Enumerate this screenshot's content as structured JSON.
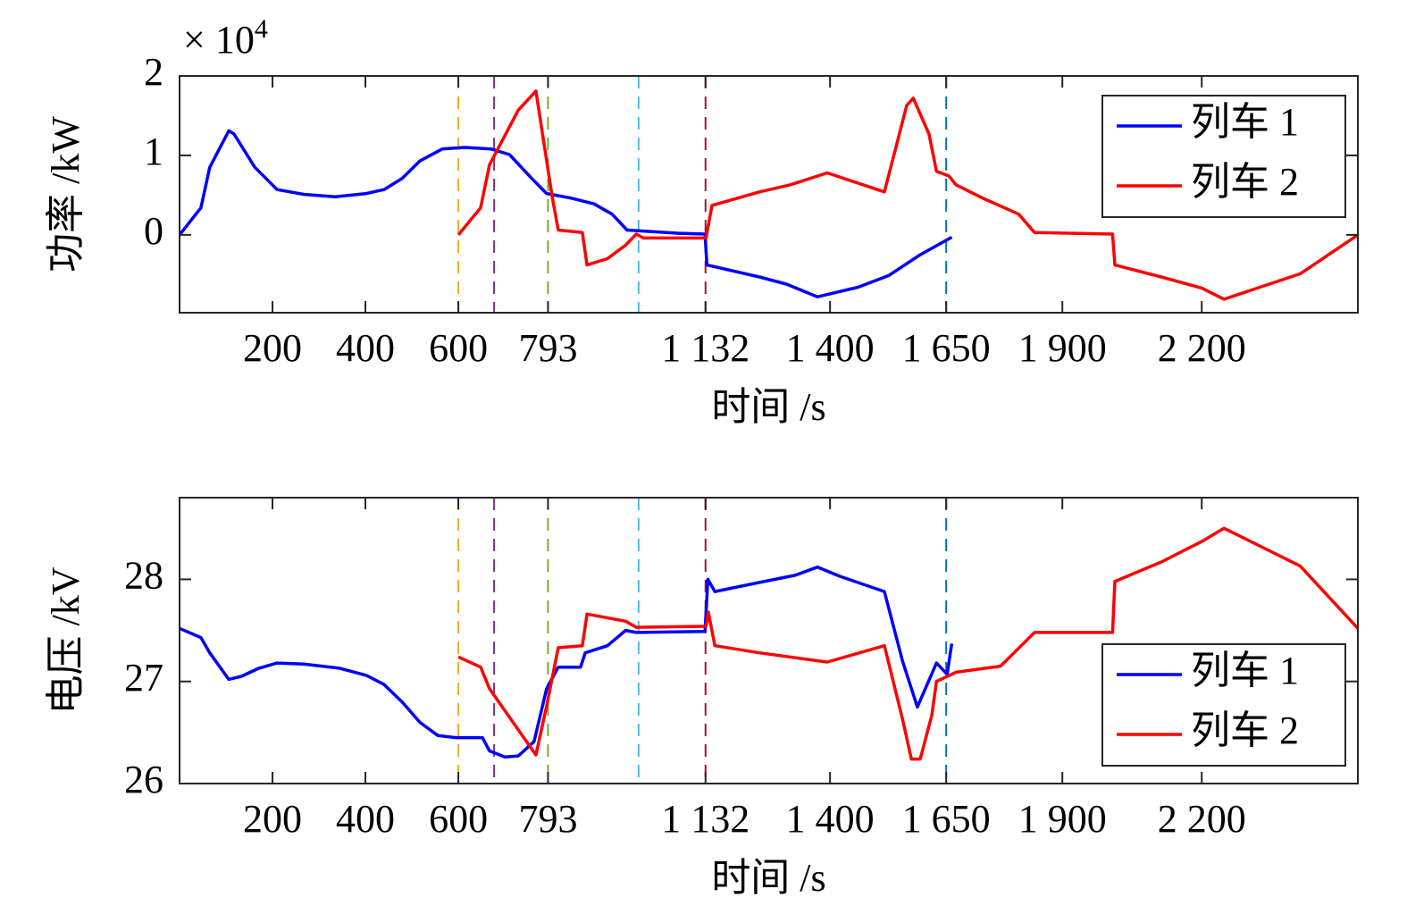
{
  "chart_data": [
    {
      "type": "line",
      "multiplier_base": "× 10",
      "multiplier_exp": "4",
      "xlabel": "时间 /s",
      "ylabel": "功率 /kW",
      "xlim": [
        0,
        2536
      ],
      "ylim": [
        -0.98,
        2
      ],
      "xticks": [
        200,
        400,
        600,
        793,
        {
          "value": 1132,
          "label": "1 132"
        },
        {
          "value": 1400,
          "label": "1 400"
        },
        {
          "value": 1650,
          "label": "1 650"
        },
        {
          "value": 1900,
          "label": "1 900"
        },
        {
          "value": 2200,
          "label": "2 200"
        }
      ],
      "yticks": [
        0,
        1,
        2
      ],
      "legend": "upper right",
      "vlines": [
        {
          "x": 600,
          "color": "#EDB120"
        },
        {
          "x": 677,
          "color": "#7E2F8E"
        },
        {
          "x": 793,
          "color": "#77AC30"
        },
        {
          "x": 988,
          "color": "#4DBEEE"
        },
        {
          "x": 1132,
          "color": "#A2142F"
        },
        {
          "x": 1650,
          "color": "#0072BD"
        }
      ],
      "series": [
        {
          "name": "列车 1",
          "color": "#0000ff",
          "x": [
            0,
            46,
            65,
            106,
            117,
            162,
            210,
            267,
            335,
            402,
            440,
            479,
            517,
            565,
            613,
            671,
            710,
            758,
            790,
            844,
            892,
            931,
            963,
            1075,
            1131,
            1135,
            1248,
            1306,
            1373,
            1460,
            1527,
            1594,
            1662
          ],
          "values": [
            0,
            0.34,
            0.85,
            1.31,
            1.27,
            0.85,
            0.57,
            0.51,
            0.48,
            0.52,
            0.57,
            0.71,
            0.93,
            1.08,
            1.1,
            1.08,
            1.01,
            0.71,
            0.52,
            0.46,
            0.39,
            0.26,
            0.06,
            0.02,
            0.01,
            -0.38,
            -0.53,
            -0.62,
            -0.78,
            -0.66,
            -0.51,
            -0.25,
            -0.03
          ]
        },
        {
          "name": "列车 2",
          "color": "#ff0000",
          "x": [
            600,
            648,
            667,
            729,
            767,
            802,
            815,
            867,
            877,
            921,
            960,
            983,
            998,
            1133,
            1146,
            1248,
            1315,
            1394,
            1517,
            1565,
            1579,
            1613,
            1629,
            1656,
            1671,
            1729,
            1806,
            1840,
            2008,
            2013,
            2113,
            2200,
            2248,
            2412,
            2536
          ],
          "values": [
            0,
            0.34,
            0.88,
            1.57,
            1.81,
            0.48,
            0.06,
            0.03,
            -0.38,
            -0.3,
            -0.13,
            0.01,
            -0.04,
            -0.04,
            0.37,
            0.54,
            0.63,
            0.78,
            0.54,
            1.63,
            1.72,
            1.27,
            0.8,
            0.74,
            0.63,
            0.46,
            0.26,
            0.03,
            0.01,
            -0.38,
            -0.53,
            -0.67,
            -0.81,
            -0.49,
            0
          ]
        }
      ]
    },
    {
      "type": "line",
      "xlabel": "时间 /s",
      "ylabel": "电压 /kV",
      "xlim": [
        0,
        2536
      ],
      "ylim": [
        26,
        28.8
      ],
      "xticks": [
        200,
        400,
        600,
        793,
        {
          "value": 1132,
          "label": "1 132"
        },
        {
          "value": 1400,
          "label": "1 400"
        },
        {
          "value": 1650,
          "label": "1 650"
        },
        {
          "value": 1900,
          "label": "1 900"
        },
        {
          "value": 2200,
          "label": "2 200"
        }
      ],
      "yticks": [
        26,
        27,
        28
      ],
      "legend": "lower right",
      "vlines": [
        {
          "x": 600,
          "color": "#EDB120"
        },
        {
          "x": 677,
          "color": "#7E2F8E"
        },
        {
          "x": 793,
          "color": "#77AC30"
        },
        {
          "x": 988,
          "color": "#4DBEEE"
        },
        {
          "x": 1132,
          "color": "#A2142F"
        },
        {
          "x": 1650,
          "color": "#0072BD"
        }
      ],
      "series": [
        {
          "name": "列车 1",
          "color": "#0000ff",
          "x": [
            0,
            46,
            65,
            106,
            133,
            171,
            210,
            267,
            344,
            402,
            440,
            479,
            517,
            556,
            594,
            652,
            667,
            700,
            729,
            763,
            790,
            815,
            863,
            873,
            921,
            960,
            983,
            1131,
            1137,
            1152,
            1248,
            1325,
            1373,
            1421,
            1517,
            1556,
            1588,
            1629,
            1652,
            1662
          ],
          "values": [
            27.52,
            27.43,
            27.28,
            27.02,
            27.05,
            27.13,
            27.18,
            27.17,
            27.13,
            27.06,
            26.97,
            26.8,
            26.6,
            26.47,
            26.45,
            26.45,
            26.32,
            26.26,
            26.27,
            26.41,
            26.93,
            27.14,
            27.14,
            27.28,
            27.35,
            27.5,
            27.48,
            27.49,
            28.0,
            27.88,
            27.97,
            28.04,
            28.12,
            28.03,
            27.88,
            27.2,
            26.75,
            27.18,
            27.07,
            27.37
          ]
        },
        {
          "name": "列车 2",
          "color": "#ff0000",
          "x": [
            600,
            648,
            667,
            767,
            790,
            815,
            867,
            877,
            960,
            983,
            1133,
            1138,
            1152,
            1248,
            1394,
            1517,
            1556,
            1575,
            1594,
            1619,
            1629,
            1671,
            1767,
            1840,
            2008,
            2013,
            2113,
            2200,
            2248,
            2412,
            2536
          ],
          "values": [
            27.24,
            27.14,
            26.93,
            26.28,
            26.76,
            27.33,
            27.35,
            27.66,
            27.59,
            27.53,
            27.54,
            27.68,
            27.35,
            27.28,
            27.19,
            27.35,
            26.63,
            26.24,
            26.24,
            26.67,
            27.0,
            27.09,
            27.15,
            27.48,
            27.48,
            27.98,
            28.17,
            28.37,
            28.5,
            28.13,
            27.52
          ]
        }
      ]
    }
  ]
}
